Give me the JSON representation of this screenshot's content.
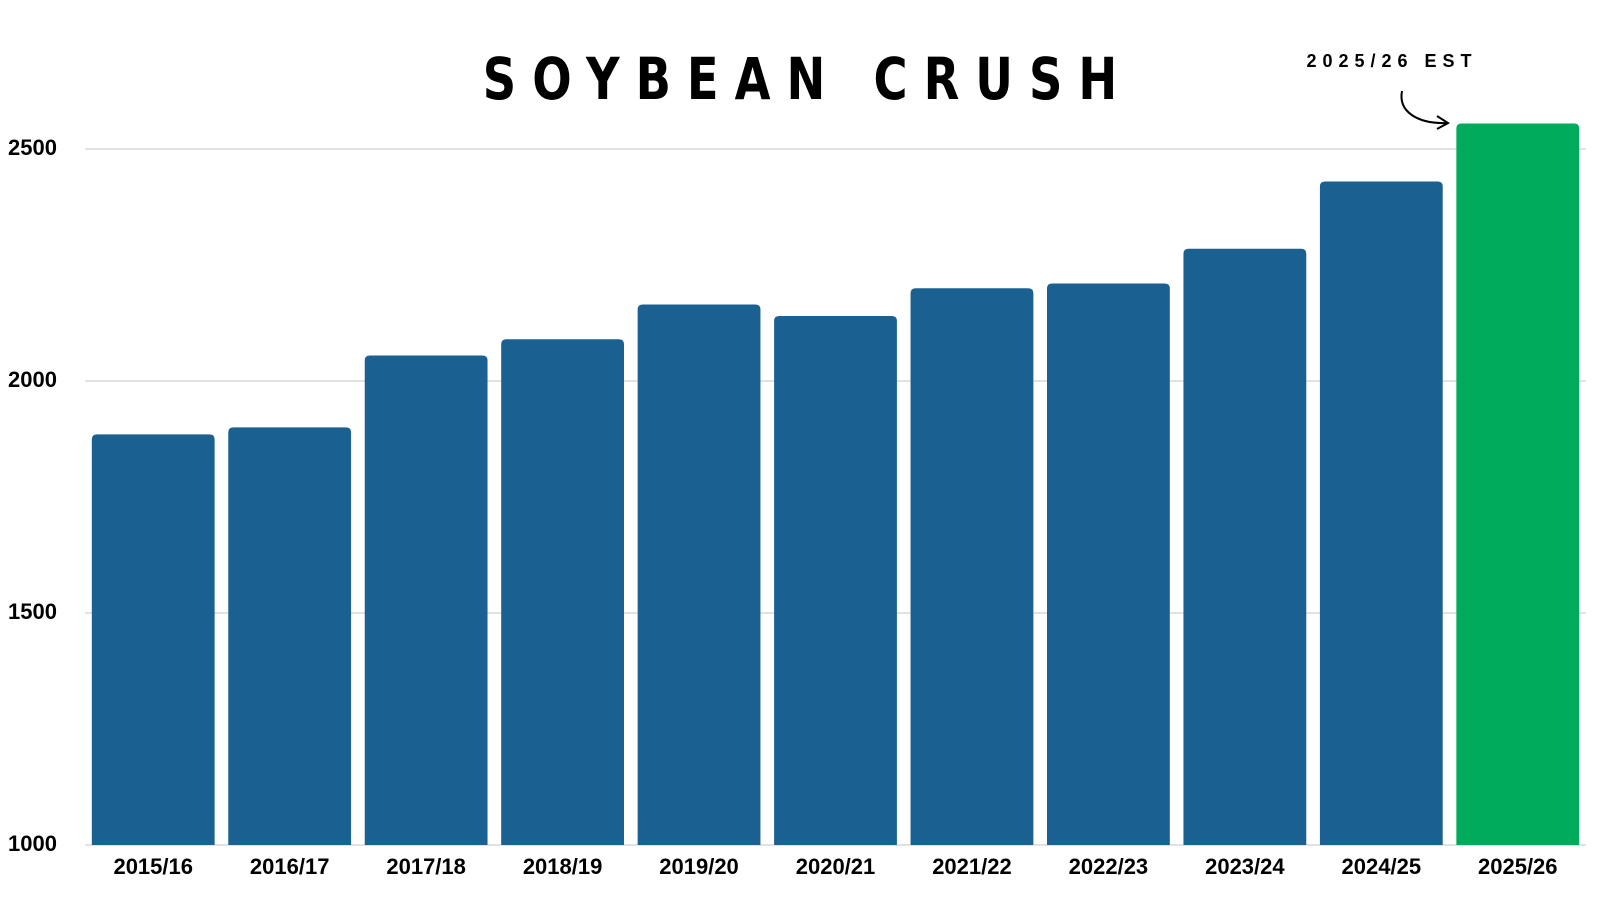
{
  "chart_data": {
    "type": "bar",
    "title": "SOYBEAN CRUSH",
    "categories": [
      "2015/16",
      "2016/17",
      "2017/18",
      "2018/19",
      "2019/20",
      "2020/21",
      "2021/22",
      "2022/23",
      "2023/24",
      "2024/25",
      "2025/26"
    ],
    "values": [
      1885,
      1900,
      2055,
      2090,
      2165,
      2140,
      2200,
      2210,
      2285,
      2430,
      2555
    ],
    "colors": [
      "#1a6090",
      "#1a6090",
      "#1a6090",
      "#1a6090",
      "#1a6090",
      "#1a6090",
      "#1a6090",
      "#1a6090",
      "#1a6090",
      "#1a6090",
      "#00ab5b"
    ],
    "ylim": [
      1000,
      2500
    ],
    "yticks": [
      1000,
      1500,
      2000,
      2500
    ],
    "grid": true,
    "annotation": "2025/26 EST"
  }
}
